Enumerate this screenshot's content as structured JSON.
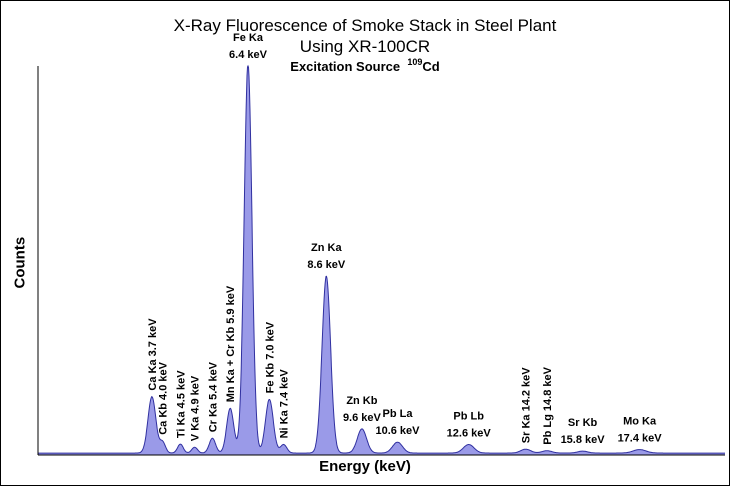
{
  "title_line1": "X-Ray Fluorescence of Smoke Stack in Steel Plant",
  "title_line2": "Using XR-100CR",
  "subtitle_prefix": "Excitation Source",
  "subtitle_isotope_mass": "109",
  "subtitle_isotope": "Cd",
  "colors": {
    "fill": "#9a9ae8",
    "stroke": "#3030a0",
    "axis": "#000000"
  },
  "chart_data": {
    "type": "area",
    "title": "X-Ray Fluorescence of Smoke Stack in Steel Plant",
    "subtitle": "Using XR-100CR",
    "xlabel": "Energy (keV)",
    "ylabel": "Counts",
    "xlim": [
      0.5,
      19.8
    ],
    "ylim": [
      0,
      100
    ],
    "y_ticks_shown": false,
    "grid": false,
    "baseline": 0.5,
    "peaks": [
      {
        "label_lines": [
          "Ca Ka  3.7 keV"
        ],
        "energy": 3.7,
        "height": 14.5,
        "width": 0.11,
        "orient": "vertical"
      },
      {
        "label_lines": [
          "Ca Kb  4.0 keV"
        ],
        "energy": 4.0,
        "height": 2.8,
        "width": 0.08,
        "orient": "vertical"
      },
      {
        "label_lines": [
          "Ti Ka  4.5 keV"
        ],
        "energy": 4.5,
        "height": 2.3,
        "width": 0.08,
        "orient": "vertical"
      },
      {
        "label_lines": [
          "V Ka  4.9 keV"
        ],
        "energy": 4.9,
        "height": 1.5,
        "width": 0.08,
        "orient": "vertical"
      },
      {
        "label_lines": [
          "Cr Ka  5.4 keV"
        ],
        "energy": 5.4,
        "height": 3.8,
        "width": 0.09,
        "orient": "vertical"
      },
      {
        "label_lines": [
          "Mn Ka + Cr Kb  5.9 keV"
        ],
        "energy": 5.9,
        "height": 11.5,
        "width": 0.1,
        "orient": "vertical"
      },
      {
        "label_lines": [
          "Fe Ka",
          "6.4 keV"
        ],
        "energy": 6.4,
        "height": 100,
        "width": 0.11,
        "orient": "horizontal"
      },
      {
        "label_lines": [
          "Fe Kb  7.0 keV"
        ],
        "energy": 7.0,
        "height": 13.8,
        "width": 0.11,
        "orient": "vertical"
      },
      {
        "label_lines": [
          "Ni Ka  7.4 keV"
        ],
        "energy": 7.4,
        "height": 2.2,
        "width": 0.09,
        "orient": "vertical"
      },
      {
        "label_lines": [
          "Zn Ka",
          "8.6 keV"
        ],
        "energy": 8.6,
        "height": 45.5,
        "width": 0.12,
        "orient": "horizontal"
      },
      {
        "label_lines": [
          "Zn Kb",
          "9.6 keV"
        ],
        "energy": 9.6,
        "height": 6.2,
        "width": 0.13,
        "orient": "horizontal"
      },
      {
        "label_lines": [
          "Pb La",
          "10.6 keV"
        ],
        "energy": 10.6,
        "height": 2.8,
        "width": 0.14,
        "orient": "horizontal"
      },
      {
        "label_lines": [
          "Pb Lb",
          "12.6 keV"
        ],
        "energy": 12.6,
        "height": 2.2,
        "width": 0.15,
        "orient": "horizontal"
      },
      {
        "label_lines": [
          "Sr Ka  14.2 keV"
        ],
        "energy": 14.2,
        "height": 1.0,
        "width": 0.14,
        "orient": "vertical"
      },
      {
        "label_lines": [
          "Pb Lg  14.8 keV"
        ],
        "energy": 14.8,
        "height": 0.6,
        "width": 0.14,
        "orient": "vertical"
      },
      {
        "label_lines": [
          "Sr Kb",
          "15.8 keV"
        ],
        "energy": 15.8,
        "height": 0.5,
        "width": 0.14,
        "orient": "horizontal"
      },
      {
        "label_lines": [
          "Mo Ka",
          "17.4 keV"
        ],
        "energy": 17.4,
        "height": 0.9,
        "width": 0.18,
        "orient": "horizontal"
      }
    ]
  }
}
